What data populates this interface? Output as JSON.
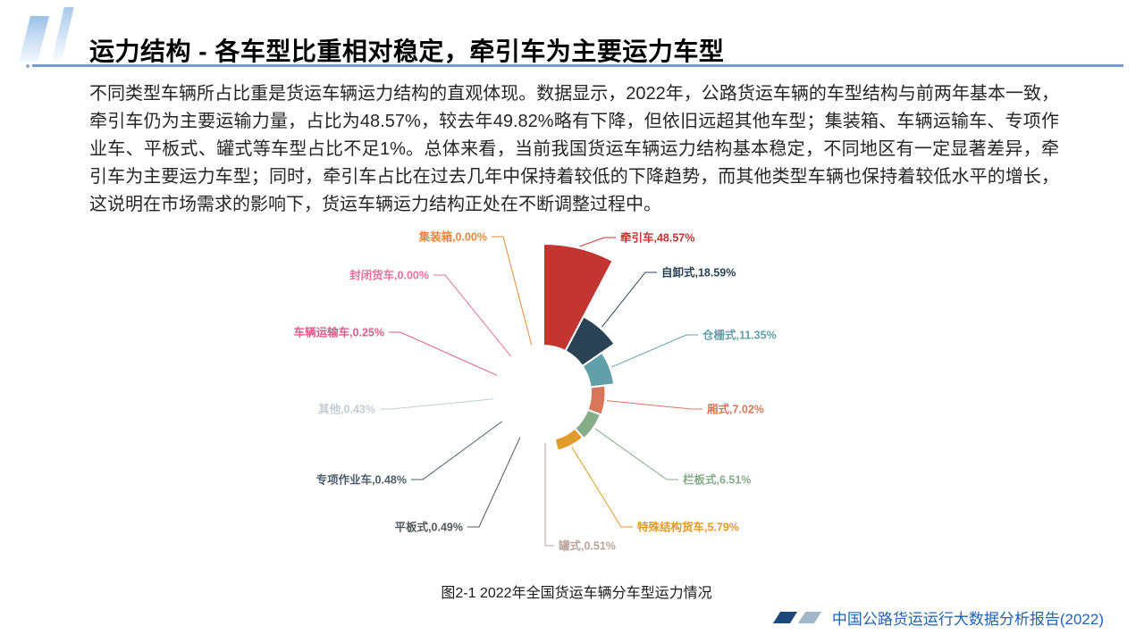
{
  "slide": {
    "title": "运力结构 - 各车型比重相对稳定，牵引车为主要运力车型",
    "body": "不同类型车辆所占比重是货运车辆运力结构的直观体现。数据显示，2022年，公路货运车辆的车型结构与前两年基本一致，牵引车仍为主要运输力量，占比为48.57%，较去年49.82%略有下降，但依旧远超其他车型；集装箱、车辆运输车、专项作业车、平板式、罐式等车型占比不足1%。总体来看，当前我国货运车辆运力结构基本稳定，不同地区有一定显著差异，牵引车为主要运力车型；同时，牵引车占比在过去几年中保持着较低的下降趋势，而其他类型车辆也保持着较低水平的增长，这说明在市场需求的影响下，货运车辆运力结构正处在不断调整过程中。",
    "caption": "图2-1 2022年全国货运车辆分车型运力情况",
    "footer": "中国公路货运运行大数据分析报告(2022)"
  },
  "colors": {
    "title_rule": "#7c9dc9",
    "footer_text": "#2264ae",
    "footer_shape_dark": "#1b4878",
    "footer_shape_light": "#a4b7ca"
  },
  "chart_data": {
    "type": "pie",
    "subtype": "nightingale-rose",
    "title": "图2-1 2022年全国货运车辆分车型运力情况",
    "unit": "%",
    "legend_position": "none",
    "series": [
      {
        "name": "牵引车",
        "value": 48.57,
        "label": "牵引车,48.57%",
        "color": "#c23531"
      },
      {
        "name": "自卸式",
        "value": 18.59,
        "label": "自卸式,18.59%",
        "color": "#2b4254"
      },
      {
        "name": "仓栅式",
        "value": 11.35,
        "label": "仓栅式,11.35%",
        "color": "#61a0a8"
      },
      {
        "name": "厢式",
        "value": 7.02,
        "label": "厢式,7.02%",
        "color": "#d8765a"
      },
      {
        "name": "栏板式",
        "value": 6.51,
        "label": "栏板式,6.51%",
        "color": "#86ac8a"
      },
      {
        "name": "特殊结构货车",
        "value": 5.79,
        "label": "特殊结构货车,5.79%",
        "color": "#e19a2c"
      },
      {
        "name": "罐式",
        "value": 0.51,
        "label": "罐式,0.51%",
        "color": "#bda29a"
      },
      {
        "name": "平板式",
        "value": 0.49,
        "label": "平板式,0.49%",
        "color": "#53575d"
      },
      {
        "name": "专项作业车",
        "value": 0.48,
        "label": "专项作业车,0.48%",
        "color": "#4d5d6d"
      },
      {
        "name": "其他",
        "value": 0.43,
        "label": "其他,0.43%",
        "color": "#c4ccd3"
      },
      {
        "name": "车辆运输车",
        "value": 0.25,
        "label": "车辆运输车,0.25%",
        "color": "#dc5e8a"
      },
      {
        "name": "封闭货车",
        "value": 0.0,
        "label": "封闭货车,0.00%",
        "color": "#e4739f"
      },
      {
        "name": "集装箱",
        "value": 0.0,
        "label": "集装箱,0.00%",
        "color": "#e6883b"
      }
    ]
  }
}
